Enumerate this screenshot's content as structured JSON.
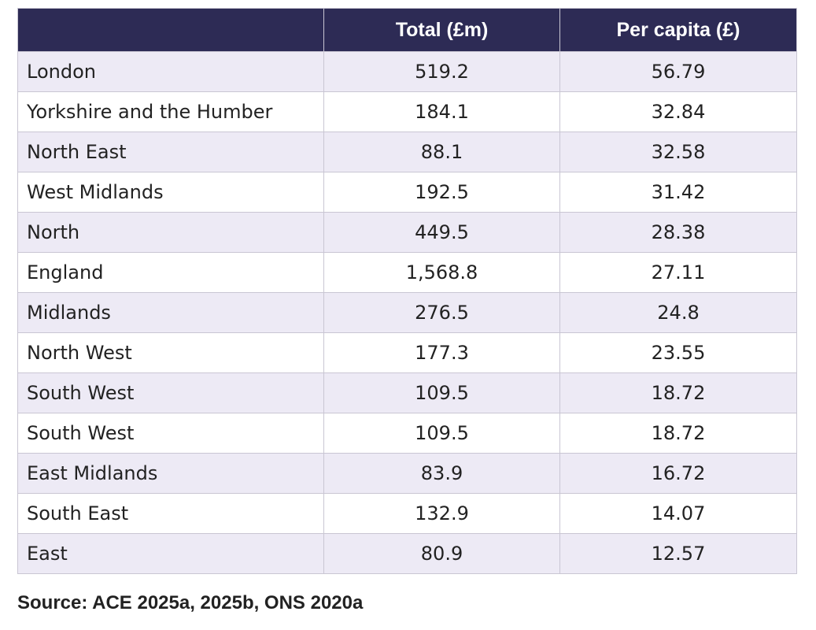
{
  "table": {
    "headers": [
      "",
      "Total (£m)",
      "Per capita (£)"
    ],
    "rows": [
      {
        "region": "London",
        "total": "519.2",
        "per_capita": "56.79"
      },
      {
        "region": "Yorkshire and the Humber",
        "total": "184.1",
        "per_capita": "32.84"
      },
      {
        "region": "North East",
        "total": "88.1",
        "per_capita": "32.58"
      },
      {
        "region": "West Midlands",
        "total": "192.5",
        "per_capita": "31.42"
      },
      {
        "region": "North",
        "total": "449.5",
        "per_capita": "28.38"
      },
      {
        "region": "England",
        "total": "1,568.8",
        "per_capita": "27.11"
      },
      {
        "region": "Midlands",
        "total": "276.5",
        "per_capita": "24.8"
      },
      {
        "region": "North West",
        "total": "177.3",
        "per_capita": "23.55"
      },
      {
        "region": "South West",
        "total": "109.5",
        "per_capita": "18.72"
      },
      {
        "region": "South West",
        "total": "109.5",
        "per_capita": "18.72"
      },
      {
        "region": "East Midlands",
        "total": "83.9",
        "per_capita": "16.72"
      },
      {
        "region": "South East",
        "total": "132.9",
        "per_capita": "14.07"
      },
      {
        "region": "East",
        "total": "80.9",
        "per_capita": "12.57"
      }
    ]
  },
  "source": "Source: ACE 2025a, 2025b, ONS 2020a",
  "colors": {
    "header_background": "#2d2b55",
    "header_text": "#ffffff",
    "row_stripe": "#edeaf5",
    "row_plain": "#ffffff",
    "border": "#c9c6d3"
  }
}
